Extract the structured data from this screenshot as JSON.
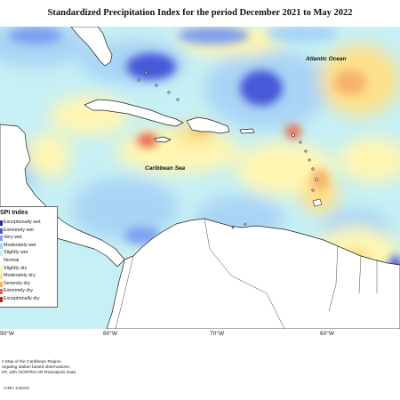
{
  "title": "Standardized Precipitation Index for the period December 2021 to May 2022",
  "labels": {
    "atlantic": "Atlantic Ocean",
    "caribbean": "Caribbean Sea"
  },
  "legend": {
    "title": "SPI Index",
    "items": [
      {
        "label": "Exceptionally wet",
        "color": "#2b2b9e"
      },
      {
        "label": "Extremely wet",
        "color": "#4658d8"
      },
      {
        "label": "Very wet",
        "color": "#7f9ff0"
      },
      {
        "label": "Moderately wet",
        "color": "#a9d4f5"
      },
      {
        "label": "Slightly wet",
        "color": "#c7f0f4"
      },
      {
        "label": "Normal",
        "color": "#ffffff"
      },
      {
        "label": "Slightly dry",
        "color": "#fff6b2"
      },
      {
        "label": "Moderately dry",
        "color": "#fde08a"
      },
      {
        "label": "Severely dry",
        "color": "#f7b267"
      },
      {
        "label": "Extremely dry",
        "color": "#e8664a"
      },
      {
        "label": "Exceptionally dry",
        "color": "#b82222"
      }
    ]
  },
  "axis": {
    "ticks": [
      "90°W",
      "80°W",
      "70°W",
      "60°W"
    ]
  },
  "caption": {
    "lines": [
      "n Map of the Caribbean Region",
      "regating station based observations,",
      "DF, with NCEP/NCAR Reanalysis Data."
    ],
    "copyright": "CIMH Jul2022"
  },
  "colors": {
    "land": "#ffffff",
    "water_base": "#c7f0f4",
    "coast": "#222222"
  }
}
